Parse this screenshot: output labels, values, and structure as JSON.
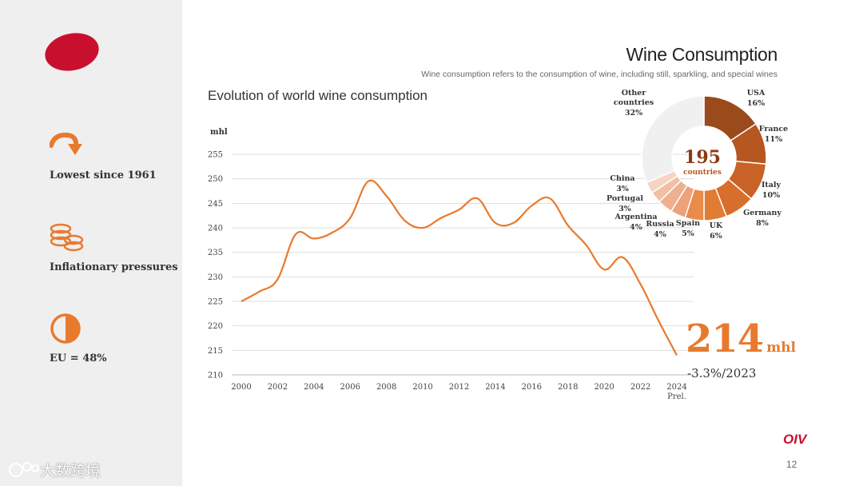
{
  "header": {
    "title": "Wine Consumption",
    "subtitle": "Wine consumption refers to the consumption of wine, including still, sparkling, and special wines"
  },
  "sidebar": {
    "items": [
      {
        "label": "Lowest since 1961",
        "icon": "down-arrow-icon"
      },
      {
        "label": "Inflationary pressures",
        "icon": "coins-icon"
      },
      {
        "label": "EU = 48%",
        "icon": "half-circle-icon"
      }
    ]
  },
  "highlight": {
    "value": "214",
    "unit": "mhl",
    "change": "-3.3%/2023"
  },
  "footer": {
    "brand": "OIV",
    "page_number": "12",
    "watermark": "大数跨境"
  },
  "colors": {
    "accent": "#e87a2e",
    "brand_red": "#c8102e"
  },
  "chart_data": [
    {
      "type": "line",
      "title": "Evolution of world wine consumption",
      "ylabel": "mhl",
      "ylim": [
        210,
        255
      ],
      "yticks": [
        210,
        215,
        220,
        225,
        230,
        235,
        240,
        245,
        250,
        255
      ],
      "xticks": [
        "2000",
        "2002",
        "2004",
        "2006",
        "2008",
        "2010",
        "2012",
        "2014",
        "2016",
        "2018",
        "2020",
        "2022",
        "2024"
      ],
      "last_tick_note": "Prel.",
      "grid": true,
      "series": [
        {
          "x": [
            2000,
            2001,
            2002,
            2003,
            2004,
            2005,
            2006,
            2007,
            2008,
            2009,
            2010,
            2011,
            2012,
            2013,
            2014,
            2015,
            2016,
            2017,
            2018,
            2019,
            2020,
            2021,
            2022,
            2023,
            2024
          ],
          "values": [
            225,
            227,
            229.5,
            238.7,
            237.8,
            239,
            242,
            249.5,
            246.5,
            241.5,
            240,
            242,
            243.7,
            246,
            241,
            241,
            244.5,
            246,
            240.5,
            236.5,
            231.5,
            234,
            228.5,
            221,
            214
          ]
        }
      ]
    },
    {
      "type": "pie",
      "center_value": "195",
      "center_label": "countries",
      "slices": [
        {
          "label": "USA",
          "value": 16,
          "text": "16%"
        },
        {
          "label": "France",
          "value": 11,
          "text": "11%"
        },
        {
          "label": "Italy",
          "value": 10,
          "text": "10%"
        },
        {
          "label": "Germany",
          "value": 8,
          "text": "8%"
        },
        {
          "label": "UK",
          "value": 6,
          "text": "6%"
        },
        {
          "label": "Spain",
          "value": 5,
          "text": "5%"
        },
        {
          "label": "Russia",
          "value": 4,
          "text": "4%"
        },
        {
          "label": "Argentina",
          "value": 4,
          "text": "4%"
        },
        {
          "label": "Portugal",
          "value": 3,
          "text": "3%"
        },
        {
          "label": "China",
          "value": 3,
          "text": "3%"
        },
        {
          "label": "Other countries",
          "value": 32,
          "text": "32%"
        }
      ]
    }
  ]
}
